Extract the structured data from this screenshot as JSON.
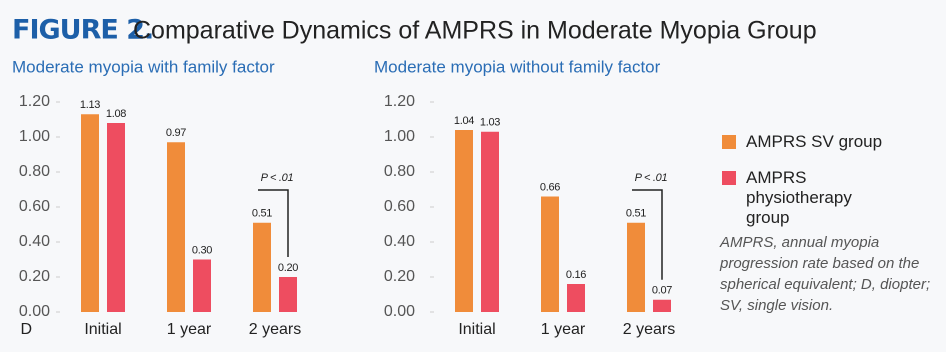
{
  "figure": {
    "label": "FIGURE 2.",
    "title": "Comparative Dynamics of AMPRS in Moderate Myopia Group",
    "note": "AMPRS, annual myopia progression rate based on the spherical equivalent; D, diopter; SV, single vision."
  },
  "chart_data": [
    {
      "type": "bar",
      "title": "Moderate myopia with family factor",
      "ylabel": "D",
      "categories": [
        "Initial",
        "1 year",
        "2 years"
      ],
      "series": [
        {
          "name": "AMPRS SV group",
          "color": "#f08c3a",
          "values": [
            1.13,
            0.97,
            0.51
          ],
          "value_labels": [
            "1.13",
            "0.97",
            "0.51"
          ]
        },
        {
          "name": "AMPRS physiotherapy group",
          "color": "#ee4d60",
          "values": [
            1.08,
            0.3,
            0.2
          ],
          "value_labels": [
            "1.08",
            "0.30",
            "0.20"
          ]
        }
      ],
      "ylim": [
        0,
        1.2
      ],
      "yticks": [
        {
          "value": 0,
          "label": "0.00"
        },
        {
          "value": 0.2,
          "label": "0.20"
        },
        {
          "value": 0.4,
          "label": "0.40"
        },
        {
          "value": 0.6,
          "label": "0.60"
        },
        {
          "value": 0.8,
          "label": "0.80"
        },
        {
          "value": 1,
          "label": "1.00"
        },
        {
          "value": 1.2,
          "label": "1.20"
        }
      ],
      "annotation": "P < .01",
      "legend": "right"
    },
    {
      "type": "bar",
      "title": "Moderate myopia without family factor",
      "categories": [
        "Initial",
        "1 year",
        "2 years"
      ],
      "series": [
        {
          "color": "#f08c3a",
          "values": [
            1.04,
            0.66,
            0.51
          ],
          "value_labels": [
            "1.04",
            "0.66",
            "0.51"
          ]
        },
        {
          "color": "#ee4d60",
          "values": [
            1.03,
            0.16,
            0.07
          ],
          "value_labels": [
            "1.03",
            "0.16",
            "0.07"
          ]
        }
      ],
      "ylim": [
        0,
        1.2
      ],
      "yticks": [
        {
          "value": 0,
          "label": "0.00"
        },
        {
          "value": 0.2,
          "label": "0.20"
        },
        {
          "value": 0.4,
          "label": "0.40"
        },
        {
          "value": 0.6,
          "label": "0.60"
        },
        {
          "value": 0.8,
          "label": "0.80"
        },
        {
          "value": 1,
          "label": "1.00"
        },
        {
          "value": 1.2,
          "label": "1.20"
        }
      ],
      "annotation": "P < .01"
    }
  ]
}
